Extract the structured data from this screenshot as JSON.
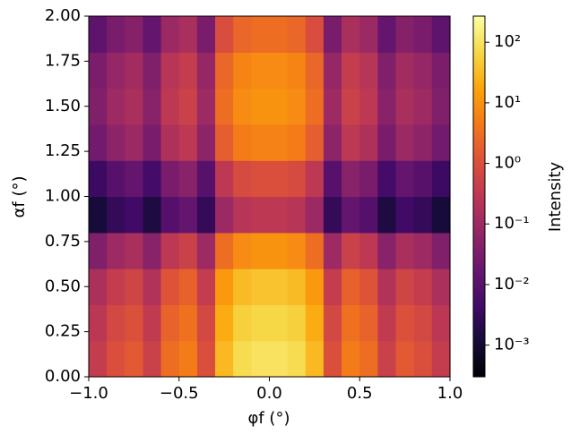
{
  "chart_data": {
    "type": "heatmap",
    "xlabel": "φf (°)",
    "ylabel": "αf (°)",
    "colorbar_label": "Intensity",
    "colormap": "inferno",
    "color_scale": "log",
    "x": [
      -0.95,
      -0.85,
      -0.75,
      -0.65,
      -0.55,
      -0.45,
      -0.35,
      -0.25,
      -0.15,
      -0.05,
      0.05,
      0.15,
      0.25,
      0.35,
      0.45,
      0.55,
      0.65,
      0.75,
      0.85,
      0.95
    ],
    "y": [
      0.1,
      0.3,
      0.5,
      0.7,
      0.9,
      1.1,
      1.3,
      1.5,
      1.7,
      1.9
    ],
    "z": [
      [
        0.4,
        1,
        1.5,
        0.5,
        3,
        5,
        1,
        30,
        80,
        100,
        100,
        80,
        30,
        1,
        5,
        3,
        0.5,
        1.5,
        1,
        0.4
      ],
      [
        0.28,
        0.7,
        1.05,
        0.35,
        2.1,
        3.5,
        0.7,
        21,
        56,
        70,
        70,
        56,
        21,
        0.7,
        3.5,
        2.1,
        0.35,
        1.05,
        0.7,
        0.28
      ],
      [
        0.16,
        0.4,
        0.6,
        0.2,
        1.2,
        2,
        0.4,
        12,
        32,
        40,
        40,
        32,
        12,
        0.4,
        2,
        1.2,
        0.2,
        0.6,
        0.4,
        0.16
      ],
      [
        0.04,
        0.1,
        0.15,
        0.05,
        0.3,
        0.5,
        0.1,
        3,
        8,
        10,
        10,
        8,
        3,
        0.1,
        0.5,
        0.3,
        0.05,
        0.15,
        0.1,
        0.04
      ],
      [
        0.0012,
        0.003,
        0.0045,
        0.0015,
        0.009,
        0.015,
        0.003,
        0.09,
        0.24,
        0.3,
        0.3,
        0.24,
        0.09,
        0.003,
        0.015,
        0.009,
        0.0015,
        0.0045,
        0.003,
        0.0012
      ],
      [
        0.004,
        0.01,
        0.015,
        0.005,
        0.03,
        0.05,
        0.01,
        0.3,
        0.8,
        1,
        1,
        0.8,
        0.3,
        0.01,
        0.05,
        0.03,
        0.005,
        0.015,
        0.01,
        0.004
      ],
      [
        0.024,
        0.06,
        0.09,
        0.03,
        0.18,
        0.3,
        0.06,
        1.8,
        4.8,
        6,
        6,
        4.8,
        1.8,
        0.06,
        0.3,
        0.18,
        0.03,
        0.09,
        0.06,
        0.024
      ],
      [
        0.04,
        0.1,
        0.15,
        0.05,
        0.3,
        0.5,
        0.1,
        3,
        8,
        10,
        10,
        8,
        3,
        0.1,
        0.5,
        0.3,
        0.05,
        0.15,
        0.1,
        0.04
      ],
      [
        0.032,
        0.08,
        0.12,
        0.04,
        0.24,
        0.4,
        0.08,
        2.4,
        6.4,
        8,
        8,
        6.4,
        2.4,
        0.08,
        0.4,
        0.24,
        0.04,
        0.12,
        0.08,
        0.032
      ],
      [
        0.012,
        0.03,
        0.045,
        0.015,
        0.09,
        0.15,
        0.03,
        0.9,
        2.4,
        3,
        3,
        2.4,
        0.9,
        0.03,
        0.15,
        0.09,
        0.015,
        0.045,
        0.03,
        0.012
      ]
    ],
    "xlim": [
      -1,
      1
    ],
    "ylim": [
      0,
      2
    ],
    "clim": [
      0.0003,
      270
    ],
    "xticks": [
      {
        "value": -1,
        "label": "−1.0"
      },
      {
        "value": -0.5,
        "label": "−0.5"
      },
      {
        "value": 0,
        "label": "0.0"
      },
      {
        "value": 0.5,
        "label": "0.5"
      },
      {
        "value": 1,
        "label": "1.0"
      }
    ],
    "yticks": [
      {
        "value": 0,
        "label": "0.00"
      },
      {
        "value": 0.25,
        "label": "0.25"
      },
      {
        "value": 0.5,
        "label": "0.50"
      },
      {
        "value": 0.75,
        "label": "0.75"
      },
      {
        "value": 1,
        "label": "1.00"
      },
      {
        "value": 1.25,
        "label": "1.25"
      },
      {
        "value": 1.5,
        "label": "1.50"
      },
      {
        "value": 1.75,
        "label": "1.75"
      },
      {
        "value": 2,
        "label": "2.00"
      }
    ],
    "cticks": [
      {
        "value": 0.001,
        "label": "10⁻³"
      },
      {
        "value": 0.01,
        "label": "10⁻²"
      },
      {
        "value": 0.1,
        "label": "10⁻¹"
      },
      {
        "value": 1,
        "label": "10⁰"
      },
      {
        "value": 10,
        "label": "10¹"
      },
      {
        "value": 100,
        "label": "10²"
      }
    ]
  }
}
